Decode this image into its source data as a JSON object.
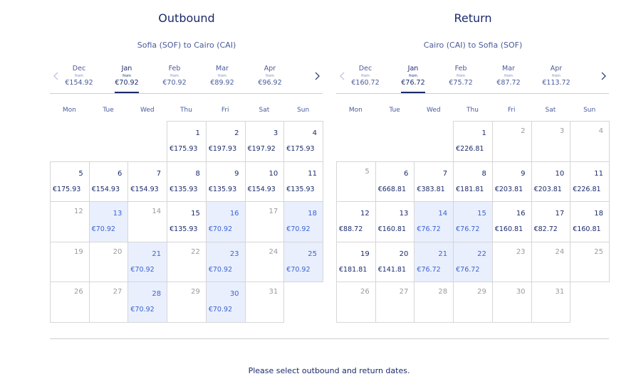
{
  "panels": [
    {
      "title": "Outbound",
      "route": "Sofia (SOF) to Cairo (CAI)",
      "months": [
        {
          "name": "Dec",
          "from": "from",
          "price": "€154.92"
        },
        {
          "name": "Jan",
          "from": "from",
          "price": "€70.92"
        },
        {
          "name": "Feb",
          "from": "from",
          "price": "€70.92"
        },
        {
          "name": "Mar",
          "from": "from",
          "price": "€89.92"
        },
        {
          "name": "Apr",
          "from": "from",
          "price": "€96.92"
        }
      ],
      "selected_month": 1,
      "weekdays": [
        "Mon",
        "Tue",
        "Wed",
        "Thu",
        "Fri",
        "Sat",
        "Sun"
      ],
      "days": [
        null,
        null,
        null,
        {
          "day": 1,
          "price": "€175.93"
        },
        {
          "day": 2,
          "price": "€197.93"
        },
        {
          "day": 3,
          "price": "€197.92"
        },
        {
          "day": 4,
          "price": "€175.93"
        },
        {
          "day": 5,
          "price": "€175.93"
        },
        {
          "day": 6,
          "price": "€154.93"
        },
        {
          "day": 7,
          "price": "€154.93"
        },
        {
          "day": 8,
          "price": "€135.93"
        },
        {
          "day": 9,
          "price": "€135.93"
        },
        {
          "day": 10,
          "price": "€154.93"
        },
        {
          "day": 11,
          "price": "€135.93"
        },
        {
          "day": 12,
          "price": null
        },
        {
          "day": 13,
          "price": "€70.92"
        },
        {
          "day": 14,
          "price": null
        },
        {
          "day": 15,
          "price": "€135.93"
        },
        {
          "day": 16,
          "price": "€70.92"
        },
        {
          "day": 17,
          "price": null
        },
        {
          "day": 18,
          "price": "€70.92"
        },
        {
          "day": 19,
          "price": null
        },
        {
          "day": 20,
          "price": null
        },
        {
          "day": 21,
          "price": "€70.92"
        },
        {
          "day": 22,
          "price": null
        },
        {
          "day": 23,
          "price": "€70.92"
        },
        {
          "day": 24,
          "price": null
        },
        {
          "day": 25,
          "price": "€70.92"
        },
        {
          "day": 26,
          "price": null
        },
        {
          "day": 27,
          "price": null
        },
        {
          "day": 28,
          "price": "€70.92"
        },
        {
          "day": 29,
          "price": null
        },
        {
          "day": 30,
          "price": "€70.92"
        },
        {
          "day": 31,
          "price": null
        }
      ]
    },
    {
      "title": "Return",
      "route": "Cairo (CAI) to Sofia (SOF)",
      "months": [
        {
          "name": "Dec",
          "from": "from",
          "price": "€160.72"
        },
        {
          "name": "Jan",
          "from": "from",
          "price": "€76.72"
        },
        {
          "name": "Feb",
          "from": "from",
          "price": "€75.72"
        },
        {
          "name": "Mar",
          "from": "from",
          "price": "€87.72"
        },
        {
          "name": "Apr",
          "from": "from",
          "price": "€113.72"
        }
      ],
      "selected_month": 1,
      "weekdays": [
        "Mon",
        "Tue",
        "Wed",
        "Thu",
        "Fri",
        "Sat",
        "Sun"
      ],
      "days": [
        null,
        null,
        null,
        {
          "day": 1,
          "price": "€226.81"
        },
        {
          "day": 2,
          "price": null
        },
        {
          "day": 3,
          "price": null
        },
        {
          "day": 4,
          "price": null
        },
        {
          "day": 5,
          "price": null
        },
        {
          "day": 6,
          "price": "€668.81"
        },
        {
          "day": 7,
          "price": "€383.81"
        },
        {
          "day": 8,
          "price": "€181.81"
        },
        {
          "day": 9,
          "price": "€203.81"
        },
        {
          "day": 10,
          "price": "€203.81"
        },
        {
          "day": 11,
          "price": "€226.81"
        },
        {
          "day": 12,
          "price": "€88.72"
        },
        {
          "day": 13,
          "price": "€160.81"
        },
        {
          "day": 14,
          "price": "€76.72"
        },
        {
          "day": 15,
          "price": "€76.72"
        },
        {
          "day": 16,
          "price": "€160.81"
        },
        {
          "day": 17,
          "price": "€82.72"
        },
        {
          "day": 18,
          "price": "€160.81"
        },
        {
          "day": 19,
          "price": "€181.81"
        },
        {
          "day": 20,
          "price": "€141.81"
        },
        {
          "day": 21,
          "price": "€76.72"
        },
        {
          "day": 22,
          "price": "€76.72"
        },
        {
          "day": 23,
          "price": null
        },
        {
          "day": 24,
          "price": null
        },
        {
          "day": 25,
          "price": null
        },
        {
          "day": 26,
          "price": null
        },
        {
          "day": 27,
          "price": null
        },
        {
          "day": 28,
          "price": null
        },
        {
          "day": 29,
          "price": null
        },
        {
          "day": 30,
          "price": null
        },
        {
          "day": 31,
          "price": null
        }
      ]
    }
  ],
  "footer": "Please select outbound and return dates."
}
